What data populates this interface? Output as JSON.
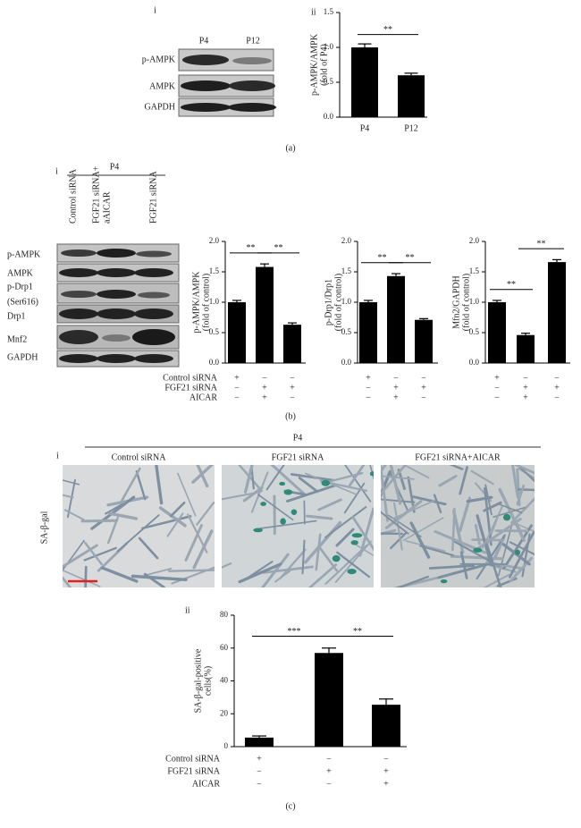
{
  "panel_a": {
    "label": "(a)",
    "sub_i": "i",
    "sub_ii": "ii",
    "blot_columns": [
      "P4",
      "P12"
    ],
    "blot_rows": [
      "p-AMPK",
      "AMPK",
      "GAPDH"
    ]
  },
  "panel_b": {
    "label": "(b)",
    "sub_i": "i",
    "group": "P4",
    "blot_columns": [
      [
        "Control siRNA"
      ],
      [
        "FGF21 siRNA+",
        "aAICAR"
      ],
      [
        "FGF21 siRNA"
      ]
    ],
    "blot_rows": [
      "p-AMPK",
      "AMPK",
      "p-Drp1",
      "(Ser616)",
      "Drp1",
      "Mnf2",
      "GAPDH"
    ],
    "treatment_names": [
      "Control siRNA",
      "FGF21 siRNA",
      "AICAR"
    ],
    "treatment_signs": [
      [
        "+",
        "−",
        "−"
      ],
      [
        "−",
        "+",
        "+"
      ],
      [
        "−",
        "+",
        "−"
      ]
    ]
  },
  "panel_c": {
    "label": "(c)",
    "sub_i": "i",
    "sub_ii": "ii",
    "group": "P4",
    "image_titles": [
      "Control siRNA",
      "FGF21 siRNA",
      "FGF21 siRNA+AICAR"
    ],
    "stain": "SA-β-gal",
    "treatment_names": [
      "Control siRNA",
      "FGF21 siRNA",
      "AICAR"
    ],
    "treatment_signs": [
      [
        "+",
        "−",
        "−"
      ],
      [
        "−",
        "+",
        "+"
      ],
      [
        "−",
        "−",
        "+"
      ]
    ]
  },
  "chart_data": [
    {
      "type": "bar",
      "ylabel": [
        "p-AMPK/AMPK",
        "(fold of P4)"
      ],
      "categories": [
        "P4",
        "P12"
      ],
      "values": [
        1.0,
        0.6
      ],
      "errors": [
        0.05,
        0.03
      ],
      "color": "#000000",
      "significance": [
        "**"
      ],
      "ylim": [
        0,
        1.5
      ],
      "yticks": [
        {
          "value": 0,
          "label": "0.0"
        },
        {
          "value": 0.5,
          "label": "0.5"
        },
        {
          "value": 1.0,
          "label": "1.0"
        },
        {
          "value": 1.5,
          "label": "1.5"
        }
      ]
    },
    {
      "type": "bar",
      "ylabel": [
        "p-AMPK/AMPK",
        "(fold of control)"
      ],
      "categories": [
        null,
        null,
        null
      ],
      "values": [
        1.0,
        1.58,
        0.63
      ],
      "errors": [
        0.03,
        0.05,
        0.03
      ],
      "color": "#000000",
      "significance": [
        "**",
        "**"
      ],
      "ylim": [
        0,
        2.0
      ],
      "yticks": [
        {
          "value": 0,
          "label": "0.0"
        },
        {
          "value": 0.5,
          "label": "0.5"
        },
        {
          "value": 1.0,
          "label": "1.0"
        },
        {
          "value": 1.5,
          "label": "1.5"
        },
        {
          "value": 2.0,
          "label": "2.0"
        }
      ]
    },
    {
      "type": "bar",
      "ylabel": [
        "p-Drp1/Drp1",
        "(fold of control)"
      ],
      "categories": [
        null,
        null,
        null
      ],
      "values": [
        1.0,
        1.43,
        0.71
      ],
      "errors": [
        0.03,
        0.04,
        0.02
      ],
      "color": "#000000",
      "significance": [
        "**",
        "**"
      ],
      "ylim": [
        0,
        2.0
      ],
      "yticks": [
        {
          "value": 0,
          "label": "0.0"
        },
        {
          "value": 0.5,
          "label": "0.5"
        },
        {
          "value": 1.0,
          "label": "1.0"
        },
        {
          "value": 1.5,
          "label": "1.5"
        },
        {
          "value": 2.0,
          "label": "2.0"
        }
      ]
    },
    {
      "type": "bar",
      "ylabel": [
        "Mfn2/GAPDH",
        "(fold of control)"
      ],
      "categories": [
        null,
        null,
        null
      ],
      "values": [
        1.0,
        0.46,
        1.66
      ],
      "errors": [
        0.03,
        0.03,
        0.04
      ],
      "color": "#000000",
      "significance": [
        "**",
        "**"
      ],
      "ylim": [
        0,
        2.0
      ],
      "yticks": [
        {
          "value": 0,
          "label": "0.0"
        },
        {
          "value": 0.5,
          "label": "0.5"
        },
        {
          "value": 1.0,
          "label": "1.0"
        },
        {
          "value": 1.5,
          "label": "1.5"
        },
        {
          "value": 2.0,
          "label": "2.0"
        }
      ]
    },
    {
      "type": "bar",
      "ylabel": [
        "SA-β-gal-positive",
        "cells(%)"
      ],
      "categories": [
        null,
        null,
        null
      ],
      "values": [
        5.5,
        57,
        25.5
      ],
      "errors": [
        1,
        3,
        3.5
      ],
      "color": "#000000",
      "significance": [
        "***",
        "**"
      ],
      "ylim": [
        0,
        80
      ],
      "yticks": [
        0,
        20,
        40,
        60,
        80
      ]
    }
  ]
}
